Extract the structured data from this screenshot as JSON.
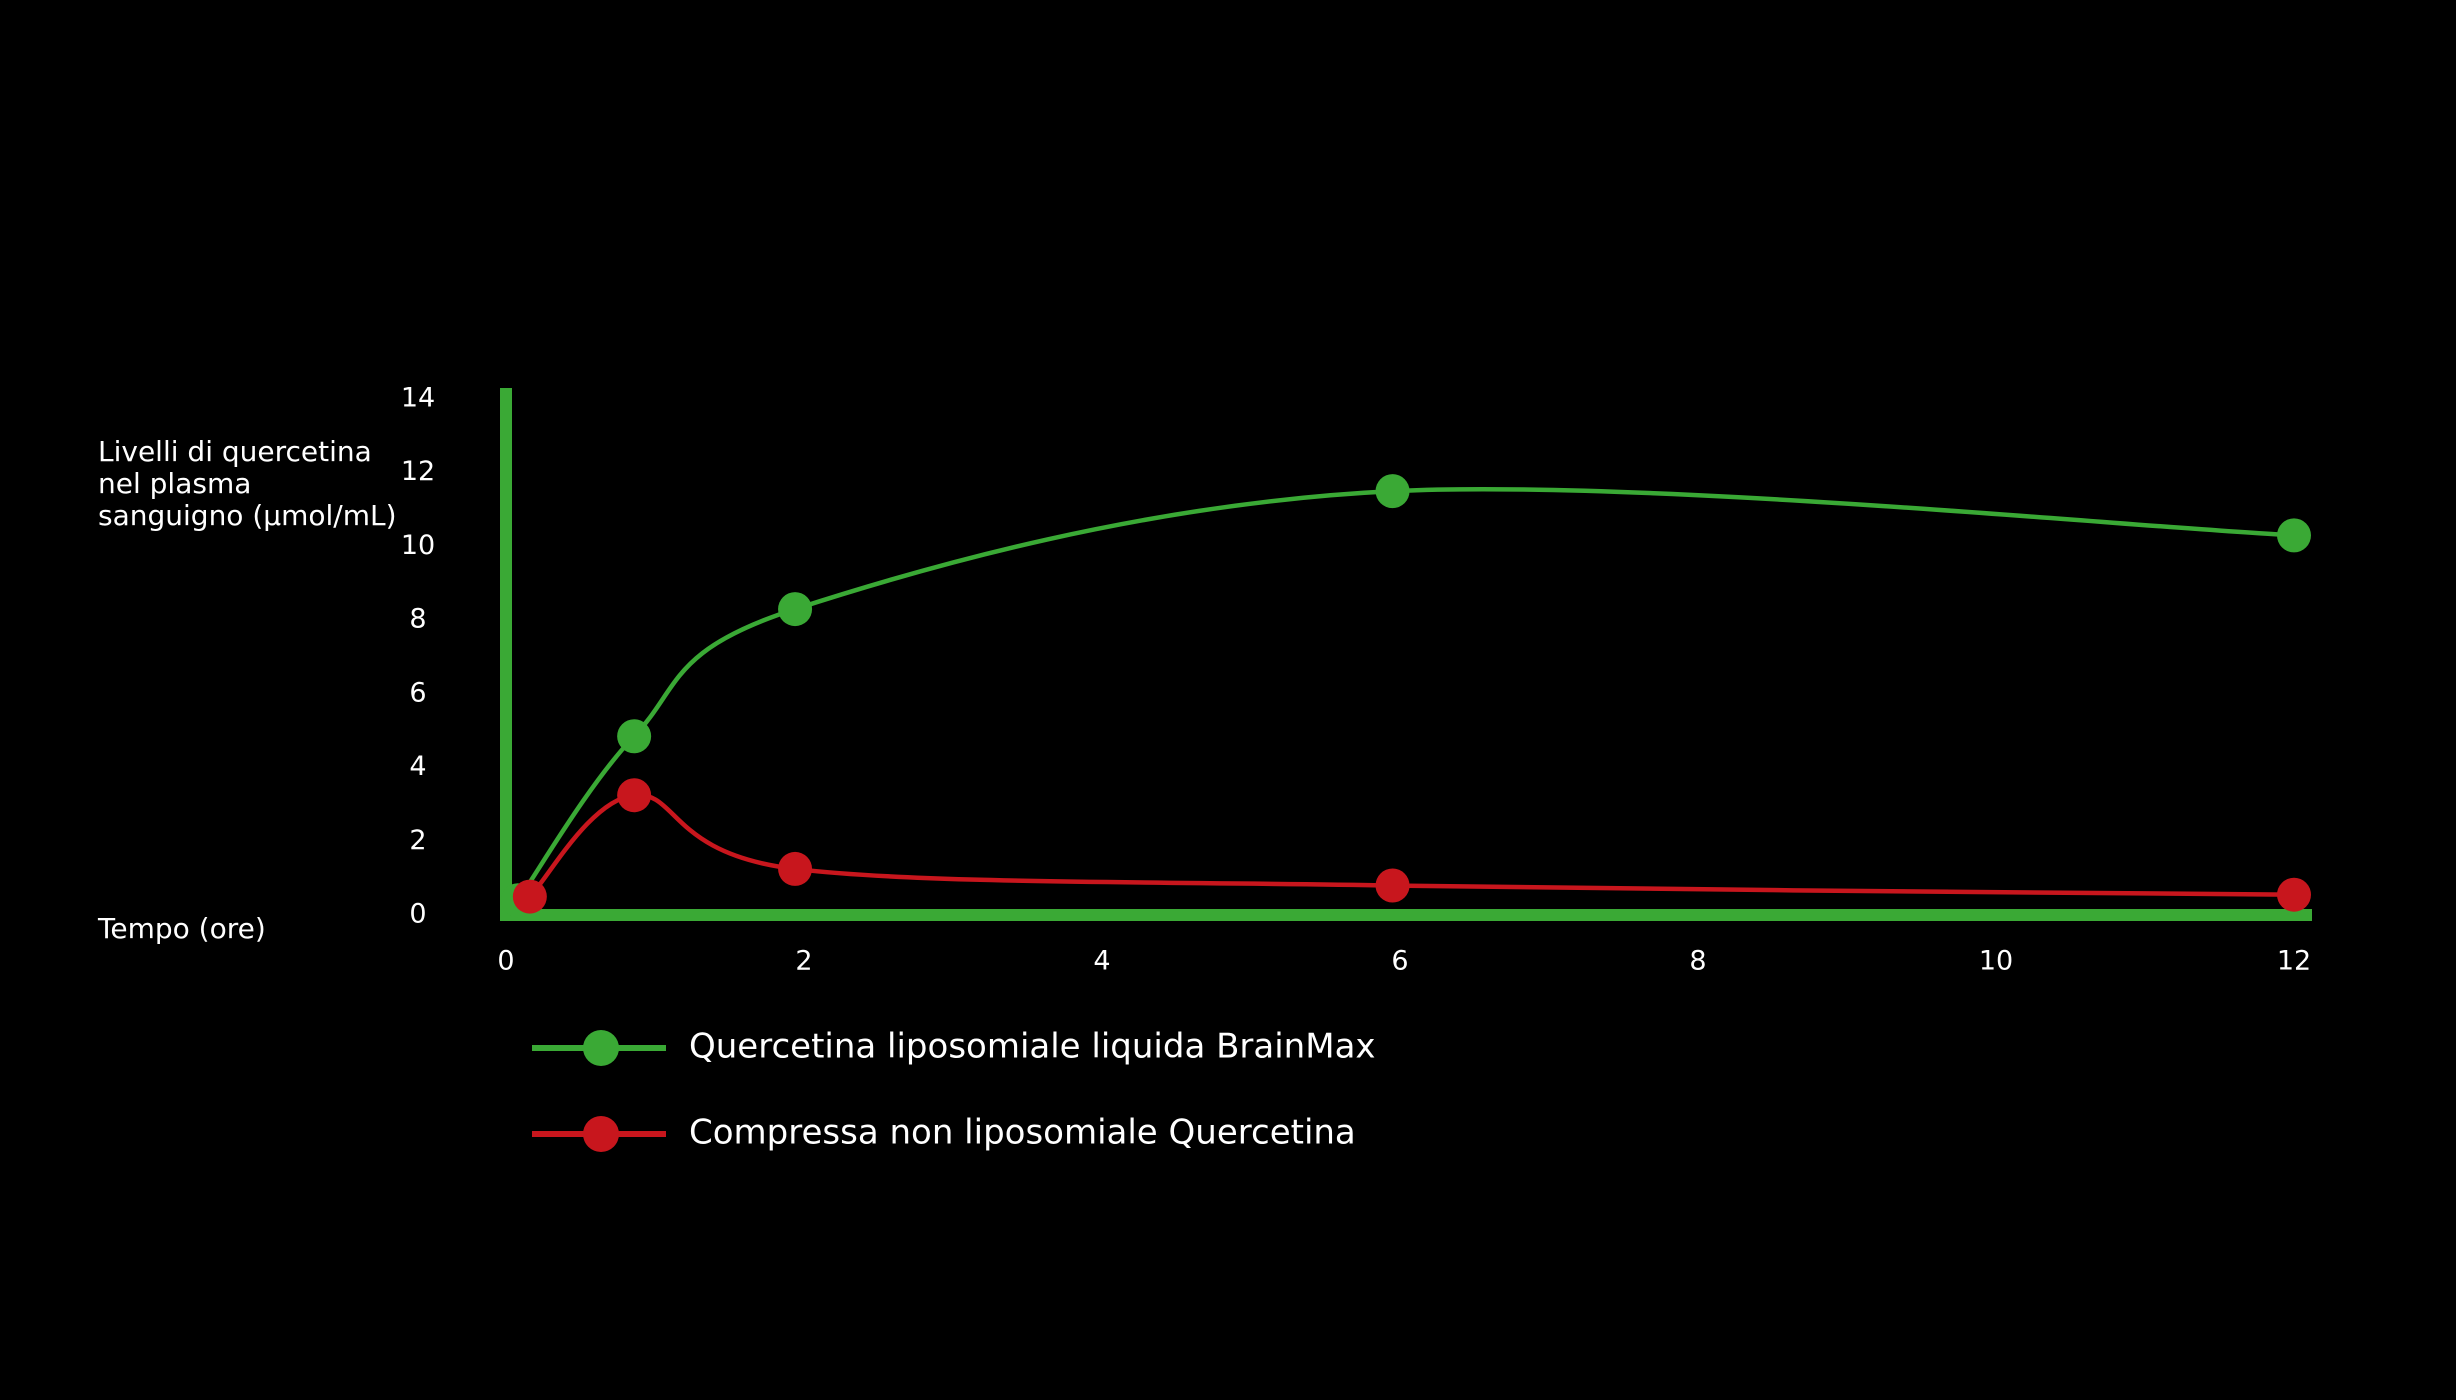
{
  "chart_data": {
    "type": "line",
    "ylabel": "Livelli di quercetina nel plasma sanguigno (μmol/mL)",
    "xlabel": "Tempo (ore)",
    "xlim": [
      0,
      12
    ],
    "xticks": [
      0,
      2,
      4,
      6,
      8,
      10,
      12
    ],
    "ylim": [
      0,
      14
    ],
    "yticks": [
      0,
      2,
      4,
      6,
      8,
      10,
      12,
      14
    ],
    "series": [
      {
        "name": "Quercetina liposomiale liquida BrainMax",
        "color": "#3aa935",
        "x": [
          0.08,
          0.86,
          1.94,
          5.95,
          12
        ],
        "values": [
          0.4,
          4.85,
          8.3,
          11.5,
          10.3
        ]
      },
      {
        "name": "Compressa non liposomiale Quercetina",
        "color": "#c8161d",
        "x": [
          0.16,
          0.86,
          1.94,
          5.95,
          12
        ],
        "values": [
          0.5,
          3.25,
          1.25,
          0.8,
          0.55
        ]
      }
    ]
  }
}
